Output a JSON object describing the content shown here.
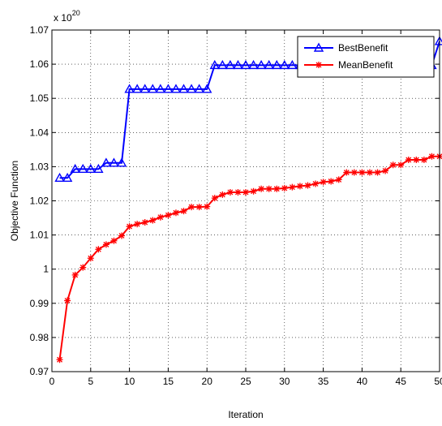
{
  "chart_data": {
    "type": "line",
    "xlabel": "Iteration",
    "ylabel": "Objective Function",
    "exponent_label": "x 10",
    "exponent_power": "20",
    "xlim": [
      0,
      50
    ],
    "ylim": [
      0.97,
      1.07
    ],
    "xticks": [
      0,
      5,
      10,
      15,
      20,
      25,
      30,
      35,
      40,
      45,
      50
    ],
    "xtick_labels": [
      "0",
      "5",
      "10",
      "15",
      "20",
      "25",
      "30",
      "35",
      "40",
      "45",
      "50"
    ],
    "yticks": [
      0.97,
      0.98,
      0.99,
      1.0,
      1.01,
      1.02,
      1.03,
      1.04,
      1.05,
      1.06,
      1.07
    ],
    "ytick_labels": [
      "0.97",
      "0.98",
      "0.99",
      "1",
      "1.01",
      "1.02",
      "1.03",
      "1.04",
      "1.05",
      "1.06",
      "1.07"
    ],
    "grid": true,
    "legend_position": "top-right",
    "x": [
      1,
      2,
      3,
      4,
      5,
      6,
      7,
      8,
      9,
      10,
      11,
      12,
      13,
      14,
      15,
      16,
      17,
      18,
      19,
      20,
      21,
      22,
      23,
      24,
      25,
      26,
      27,
      28,
      29,
      30,
      31,
      32,
      33,
      34,
      35,
      36,
      37,
      38,
      39,
      40,
      41,
      42,
      43,
      44,
      45,
      46,
      47,
      48,
      49,
      50
    ],
    "series": [
      {
        "name": "BestBenefit",
        "color": "#0000ff",
        "marker": "triangle",
        "values": [
          1.0267,
          1.0267,
          1.0293,
          1.0293,
          1.0293,
          1.0293,
          1.0311,
          1.0311,
          1.0311,
          1.0527,
          1.0527,
          1.0527,
          1.0527,
          1.0527,
          1.0527,
          1.0527,
          1.0527,
          1.0527,
          1.0527,
          1.0527,
          1.0597,
          1.0597,
          1.0597,
          1.0597,
          1.0597,
          1.0597,
          1.0597,
          1.0597,
          1.0597,
          1.0597,
          1.0597,
          1.0597,
          1.0597,
          1.0597,
          1.0597,
          1.0597,
          1.0597,
          1.0597,
          1.0597,
          1.0597,
          1.0597,
          1.0597,
          1.0597,
          1.0597,
          1.0597,
          1.0597,
          1.0597,
          1.0597,
          1.0597,
          1.0667
        ]
      },
      {
        "name": "MeanBenefit",
        "color": "#ff0000",
        "marker": "star",
        "values": [
          0.9735,
          0.9908,
          0.9983,
          1.0005,
          1.0032,
          1.0058,
          1.0072,
          1.0083,
          1.0098,
          1.0125,
          1.0132,
          1.0137,
          1.0143,
          1.0152,
          1.0158,
          1.0165,
          1.017,
          1.0182,
          1.0182,
          1.0183,
          1.0208,
          1.0218,
          1.0225,
          1.0225,
          1.0225,
          1.0228,
          1.0235,
          1.0235,
          1.0235,
          1.0237,
          1.024,
          1.0243,
          1.0245,
          1.025,
          1.0255,
          1.0257,
          1.0262,
          1.0283,
          1.0283,
          1.0283,
          1.0283,
          1.0283,
          1.0288,
          1.0305,
          1.0305,
          1.032,
          1.032,
          1.032,
          1.033,
          1.033
        ]
      }
    ]
  }
}
